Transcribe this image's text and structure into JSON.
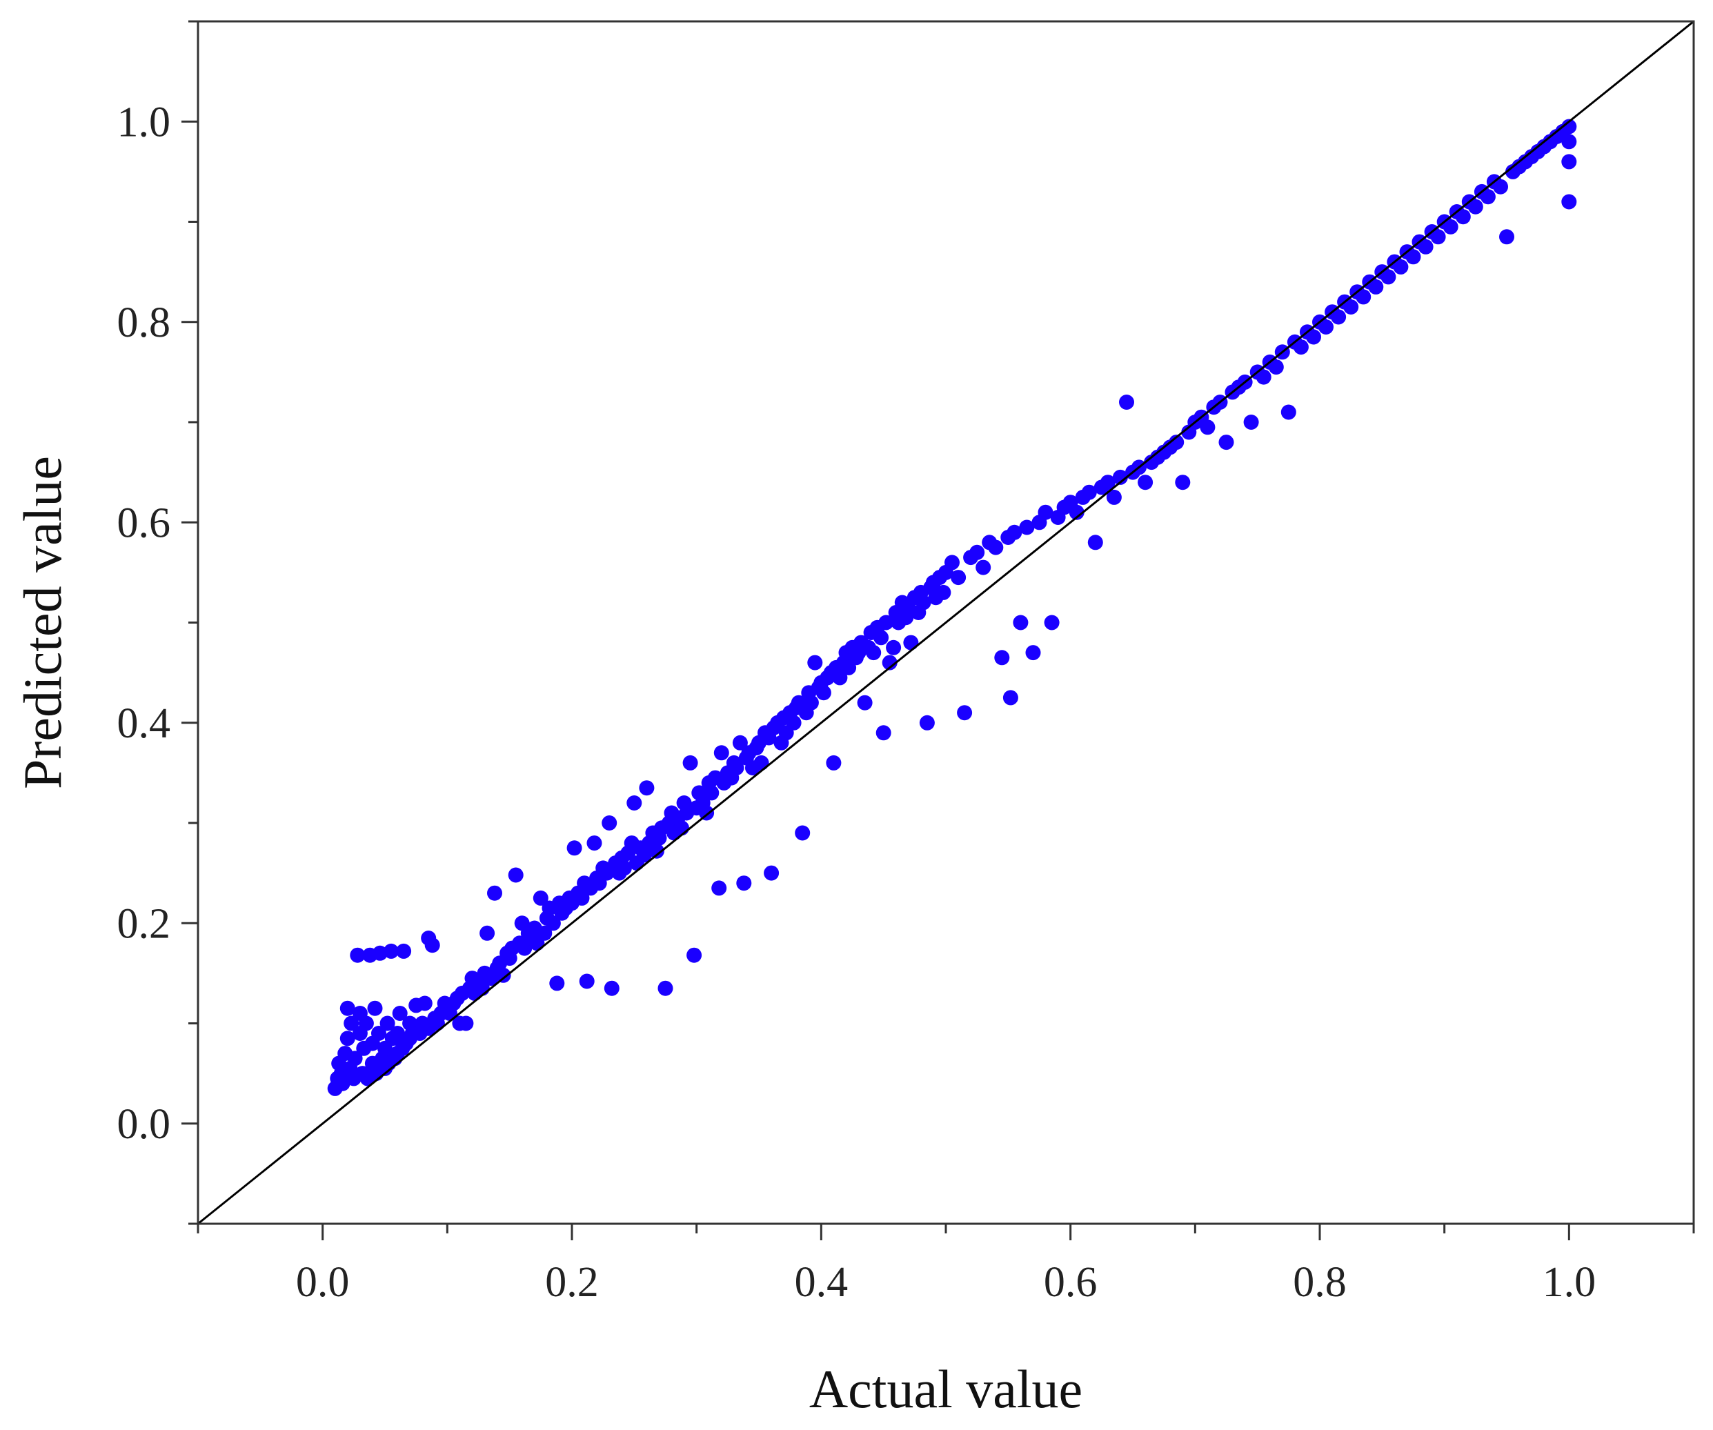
{
  "chart_data": {
    "type": "scatter",
    "title": "",
    "xlabel": "Actual value",
    "ylabel": "Predicted value",
    "xlim": [
      -0.1,
      1.1
    ],
    "ylim": [
      -0.1,
      1.1
    ],
    "x_ticks": [
      "0.0",
      "0.2",
      "0.4",
      "0.6",
      "0.8",
      "1.0"
    ],
    "y_ticks": [
      "0.0",
      "0.2",
      "0.4",
      "0.6",
      "0.8",
      "1.0"
    ],
    "grid": false,
    "legend": "none",
    "point_color": "#1a00ff",
    "reference_line": {
      "from": [
        -0.1,
        -0.1
      ],
      "to": [
        1.1,
        1.1
      ],
      "color": "#000000"
    },
    "points": [
      [
        0.01,
        0.035
      ],
      [
        0.012,
        0.045
      ],
      [
        0.013,
        0.06
      ],
      [
        0.015,
        0.05
      ],
      [
        0.016,
        0.04
      ],
      [
        0.018,
        0.07
      ],
      [
        0.02,
        0.115
      ],
      [
        0.02,
        0.085
      ],
      [
        0.022,
        0.055
      ],
      [
        0.023,
        0.1
      ],
      [
        0.025,
        0.045
      ],
      [
        0.026,
        0.065
      ],
      [
        0.028,
        0.168
      ],
      [
        0.03,
        0.09
      ],
      [
        0.03,
        0.11
      ],
      [
        0.032,
        0.05
      ],
      [
        0.033,
        0.075
      ],
      [
        0.035,
        0.1
      ],
      [
        0.036,
        0.045
      ],
      [
        0.038,
        0.168
      ],
      [
        0.04,
        0.06
      ],
      [
        0.04,
        0.08
      ],
      [
        0.042,
        0.115
      ],
      [
        0.043,
        0.05
      ],
      [
        0.045,
        0.09
      ],
      [
        0.046,
        0.17
      ],
      [
        0.048,
        0.065
      ],
      [
        0.05,
        0.055
      ],
      [
        0.05,
        0.075
      ],
      [
        0.052,
        0.1
      ],
      [
        0.053,
        0.06
      ],
      [
        0.055,
        0.172
      ],
      [
        0.056,
        0.085
      ],
      [
        0.058,
        0.065
      ],
      [
        0.06,
        0.07
      ],
      [
        0.06,
        0.09
      ],
      [
        0.062,
        0.11
      ],
      [
        0.064,
        0.075
      ],
      [
        0.065,
        0.172
      ],
      [
        0.067,
        0.08
      ],
      [
        0.07,
        0.085
      ],
      [
        0.07,
        0.1
      ],
      [
        0.072,
        0.09
      ],
      [
        0.075,
        0.118
      ],
      [
        0.078,
        0.09
      ],
      [
        0.08,
        0.1
      ],
      [
        0.082,
        0.12
      ],
      [
        0.085,
        0.185
      ],
      [
        0.085,
        0.095
      ],
      [
        0.088,
        0.178
      ],
      [
        0.09,
        0.105
      ],
      [
        0.092,
        0.1
      ],
      [
        0.095,
        0.11
      ],
      [
        0.098,
        0.12
      ],
      [
        0.1,
        0.115
      ],
      [
        0.102,
        0.11
      ],
      [
        0.105,
        0.12
      ],
      [
        0.108,
        0.125
      ],
      [
        0.11,
        0.1
      ],
      [
        0.112,
        0.13
      ],
      [
        0.115,
        0.1
      ],
      [
        0.118,
        0.135
      ],
      [
        0.12,
        0.145
      ],
      [
        0.122,
        0.13
      ],
      [
        0.125,
        0.14
      ],
      [
        0.128,
        0.135
      ],
      [
        0.13,
        0.15
      ],
      [
        0.132,
        0.19
      ],
      [
        0.135,
        0.145
      ],
      [
        0.138,
        0.23
      ],
      [
        0.14,
        0.155
      ],
      [
        0.142,
        0.16
      ],
      [
        0.145,
        0.148
      ],
      [
        0.148,
        0.17
      ],
      [
        0.15,
        0.165
      ],
      [
        0.152,
        0.175
      ],
      [
        0.155,
        0.248
      ],
      [
        0.158,
        0.18
      ],
      [
        0.16,
        0.2
      ],
      [
        0.162,
        0.175
      ],
      [
        0.165,
        0.19
      ],
      [
        0.168,
        0.185
      ],
      [
        0.17,
        0.195
      ],
      [
        0.172,
        0.18
      ],
      [
        0.175,
        0.225
      ],
      [
        0.178,
        0.19
      ],
      [
        0.18,
        0.205
      ],
      [
        0.182,
        0.215
      ],
      [
        0.185,
        0.2
      ],
      [
        0.188,
        0.14
      ],
      [
        0.19,
        0.22
      ],
      [
        0.192,
        0.21
      ],
      [
        0.195,
        0.215
      ],
      [
        0.198,
        0.225
      ],
      [
        0.2,
        0.22
      ],
      [
        0.202,
        0.275
      ],
      [
        0.205,
        0.23
      ],
      [
        0.208,
        0.225
      ],
      [
        0.21,
        0.24
      ],
      [
        0.212,
        0.142
      ],
      [
        0.215,
        0.235
      ],
      [
        0.218,
        0.28
      ],
      [
        0.22,
        0.245
      ],
      [
        0.222,
        0.24
      ],
      [
        0.225,
        0.255
      ],
      [
        0.228,
        0.25
      ],
      [
        0.23,
        0.3
      ],
      [
        0.232,
        0.135
      ],
      [
        0.235,
        0.26
      ],
      [
        0.238,
        0.25
      ],
      [
        0.24,
        0.265
      ],
      [
        0.242,
        0.255
      ],
      [
        0.245,
        0.27
      ],
      [
        0.248,
        0.28
      ],
      [
        0.25,
        0.32
      ],
      [
        0.252,
        0.26
      ],
      [
        0.255,
        0.275
      ],
      [
        0.258,
        0.268
      ],
      [
        0.26,
        0.335
      ],
      [
        0.262,
        0.28
      ],
      [
        0.265,
        0.29
      ],
      [
        0.268,
        0.272
      ],
      [
        0.27,
        0.285
      ],
      [
        0.272,
        0.295
      ],
      [
        0.275,
        0.135
      ],
      [
        0.278,
        0.3
      ],
      [
        0.28,
        0.31
      ],
      [
        0.282,
        0.29
      ],
      [
        0.285,
        0.305
      ],
      [
        0.288,
        0.295
      ],
      [
        0.29,
        0.32
      ],
      [
        0.292,
        0.31
      ],
      [
        0.295,
        0.36
      ],
      [
        0.298,
        0.168
      ],
      [
        0.3,
        0.315
      ],
      [
        0.302,
        0.33
      ],
      [
        0.305,
        0.32
      ],
      [
        0.308,
        0.31
      ],
      [
        0.31,
        0.34
      ],
      [
        0.312,
        0.33
      ],
      [
        0.315,
        0.345
      ],
      [
        0.318,
        0.235
      ],
      [
        0.32,
        0.37
      ],
      [
        0.322,
        0.34
      ],
      [
        0.325,
        0.35
      ],
      [
        0.328,
        0.345
      ],
      [
        0.33,
        0.36
      ],
      [
        0.332,
        0.355
      ],
      [
        0.335,
        0.38
      ],
      [
        0.338,
        0.24
      ],
      [
        0.34,
        0.365
      ],
      [
        0.342,
        0.37
      ],
      [
        0.345,
        0.355
      ],
      [
        0.348,
        0.375
      ],
      [
        0.35,
        0.38
      ],
      [
        0.352,
        0.36
      ],
      [
        0.355,
        0.39
      ],
      [
        0.358,
        0.385
      ],
      [
        0.36,
        0.25
      ],
      [
        0.362,
        0.395
      ],
      [
        0.365,
        0.4
      ],
      [
        0.368,
        0.38
      ],
      [
        0.37,
        0.405
      ],
      [
        0.372,
        0.39
      ],
      [
        0.375,
        0.41
      ],
      [
        0.378,
        0.4
      ],
      [
        0.38,
        0.415
      ],
      [
        0.382,
        0.42
      ],
      [
        0.385,
        0.29
      ],
      [
        0.388,
        0.41
      ],
      [
        0.39,
        0.43
      ],
      [
        0.392,
        0.42
      ],
      [
        0.395,
        0.46
      ],
      [
        0.398,
        0.435
      ],
      [
        0.4,
        0.44
      ],
      [
        0.402,
        0.43
      ],
      [
        0.405,
        0.445
      ],
      [
        0.408,
        0.45
      ],
      [
        0.41,
        0.36
      ],
      [
        0.412,
        0.455
      ],
      [
        0.415,
        0.445
      ],
      [
        0.418,
        0.46
      ],
      [
        0.42,
        0.47
      ],
      [
        0.422,
        0.455
      ],
      [
        0.425,
        0.475
      ],
      [
        0.428,
        0.465
      ],
      [
        0.43,
        0.47
      ],
      [
        0.432,
        0.48
      ],
      [
        0.435,
        0.42
      ],
      [
        0.438,
        0.475
      ],
      [
        0.44,
        0.49
      ],
      [
        0.442,
        0.47
      ],
      [
        0.445,
        0.495
      ],
      [
        0.448,
        0.485
      ],
      [
        0.45,
        0.39
      ],
      [
        0.452,
        0.5
      ],
      [
        0.455,
        0.46
      ],
      [
        0.458,
        0.475
      ],
      [
        0.46,
        0.51
      ],
      [
        0.462,
        0.5
      ],
      [
        0.465,
        0.52
      ],
      [
        0.468,
        0.505
      ],
      [
        0.47,
        0.515
      ],
      [
        0.472,
        0.48
      ],
      [
        0.475,
        0.525
      ],
      [
        0.478,
        0.51
      ],
      [
        0.48,
        0.53
      ],
      [
        0.482,
        0.52
      ],
      [
        0.485,
        0.4
      ],
      [
        0.488,
        0.535
      ],
      [
        0.49,
        0.54
      ],
      [
        0.492,
        0.525
      ],
      [
        0.495,
        0.545
      ],
      [
        0.498,
        0.53
      ],
      [
        0.5,
        0.55
      ],
      [
        0.505,
        0.56
      ],
      [
        0.51,
        0.545
      ],
      [
        0.515,
        0.41
      ],
      [
        0.52,
        0.565
      ],
      [
        0.525,
        0.57
      ],
      [
        0.53,
        0.555
      ],
      [
        0.535,
        0.58
      ],
      [
        0.54,
        0.575
      ],
      [
        0.545,
        0.465
      ],
      [
        0.55,
        0.585
      ],
      [
        0.552,
        0.425
      ],
      [
        0.555,
        0.59
      ],
      [
        0.56,
        0.5
      ],
      [
        0.565,
        0.595
      ],
      [
        0.57,
        0.47
      ],
      [
        0.575,
        0.6
      ],
      [
        0.58,
        0.61
      ],
      [
        0.585,
        0.5
      ],
      [
        0.59,
        0.605
      ],
      [
        0.595,
        0.615
      ],
      [
        0.6,
        0.62
      ],
      [
        0.605,
        0.61
      ],
      [
        0.61,
        0.625
      ],
      [
        0.615,
        0.63
      ],
      [
        0.62,
        0.58
      ],
      [
        0.625,
        0.635
      ],
      [
        0.63,
        0.64
      ],
      [
        0.635,
        0.625
      ],
      [
        0.64,
        0.645
      ],
      [
        0.645,
        0.72
      ],
      [
        0.65,
        0.65
      ],
      [
        0.655,
        0.655
      ],
      [
        0.66,
        0.64
      ],
      [
        0.665,
        0.66
      ],
      [
        0.67,
        0.665
      ],
      [
        0.675,
        0.67
      ],
      [
        0.68,
        0.675
      ],
      [
        0.685,
        0.68
      ],
      [
        0.69,
        0.64
      ],
      [
        0.695,
        0.69
      ],
      [
        0.7,
        0.7
      ],
      [
        0.705,
        0.705
      ],
      [
        0.71,
        0.695
      ],
      [
        0.715,
        0.715
      ],
      [
        0.72,
        0.72
      ],
      [
        0.725,
        0.68
      ],
      [
        0.73,
        0.73
      ],
      [
        0.735,
        0.735
      ],
      [
        0.74,
        0.74
      ],
      [
        0.745,
        0.7
      ],
      [
        0.75,
        0.75
      ],
      [
        0.755,
        0.745
      ],
      [
        0.76,
        0.76
      ],
      [
        0.765,
        0.755
      ],
      [
        0.77,
        0.77
      ],
      [
        0.775,
        0.71
      ],
      [
        0.78,
        0.78
      ],
      [
        0.785,
        0.775
      ],
      [
        0.79,
        0.79
      ],
      [
        0.795,
        0.785
      ],
      [
        0.8,
        0.8
      ],
      [
        0.805,
        0.795
      ],
      [
        0.81,
        0.81
      ],
      [
        0.815,
        0.805
      ],
      [
        0.82,
        0.82
      ],
      [
        0.825,
        0.815
      ],
      [
        0.83,
        0.83
      ],
      [
        0.835,
        0.825
      ],
      [
        0.84,
        0.84
      ],
      [
        0.845,
        0.835
      ],
      [
        0.85,
        0.85
      ],
      [
        0.855,
        0.845
      ],
      [
        0.86,
        0.86
      ],
      [
        0.865,
        0.855
      ],
      [
        0.87,
        0.87
      ],
      [
        0.875,
        0.865
      ],
      [
        0.88,
        0.88
      ],
      [
        0.885,
        0.875
      ],
      [
        0.89,
        0.89
      ],
      [
        0.895,
        0.885
      ],
      [
        0.9,
        0.9
      ],
      [
        0.905,
        0.895
      ],
      [
        0.91,
        0.91
      ],
      [
        0.915,
        0.905
      ],
      [
        0.92,
        0.92
      ],
      [
        0.925,
        0.915
      ],
      [
        0.93,
        0.93
      ],
      [
        0.935,
        0.925
      ],
      [
        0.94,
        0.94
      ],
      [
        0.945,
        0.935
      ],
      [
        0.95,
        0.885
      ],
      [
        0.955,
        0.95
      ],
      [
        0.96,
        0.955
      ],
      [
        0.965,
        0.96
      ],
      [
        0.97,
        0.965
      ],
      [
        0.975,
        0.97
      ],
      [
        0.98,
        0.975
      ],
      [
        0.985,
        0.98
      ],
      [
        0.99,
        0.985
      ],
      [
        0.995,
        0.99
      ],
      [
        1.0,
        0.92
      ],
      [
        1.0,
        0.96
      ],
      [
        1.0,
        0.98
      ],
      [
        1.0,
        0.995
      ]
    ]
  }
}
